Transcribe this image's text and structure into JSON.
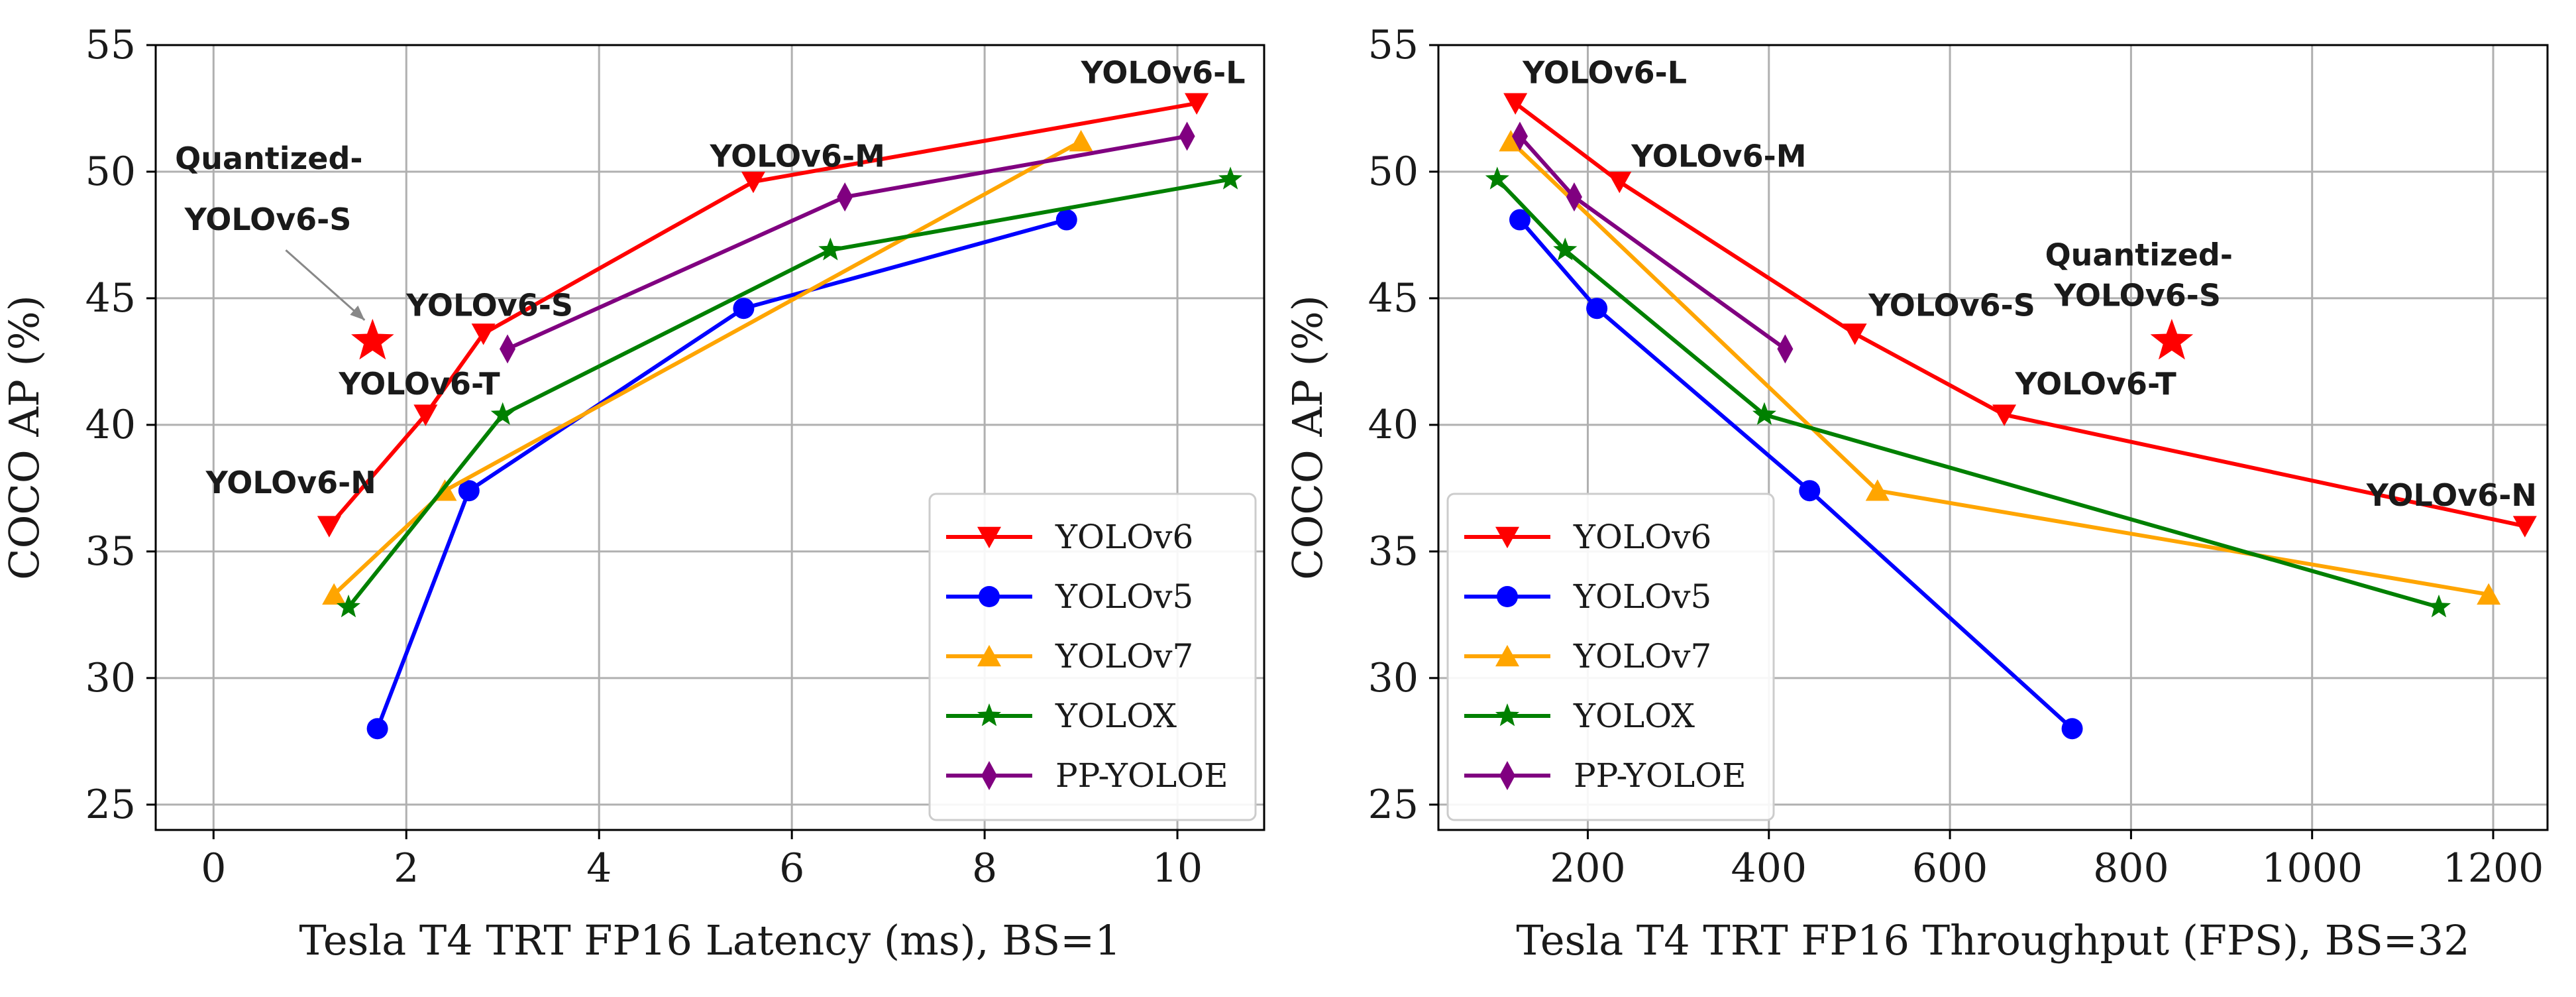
{
  "chart_data": [
    {
      "type": "line",
      "xlabel": "Tesla T4 TRT FP16 Latency (ms), BS=1",
      "ylabel": "COCO AP (%)",
      "xlim": [
        -0.6,
        10.9
      ],
      "ylim": [
        24,
        55
      ],
      "xticks": [
        0,
        2,
        4,
        6,
        8,
        10
      ],
      "yticks": [
        25,
        30,
        35,
        40,
        45,
        50,
        55
      ],
      "grid": true,
      "legend": "bottom-right",
      "series": [
        {
          "name": "YOLOv6",
          "color": "#ff0000",
          "marker": "triangle-down",
          "points": [
            [
              1.2,
              36.0
            ],
            [
              2.2,
              40.4
            ],
            [
              2.8,
              43.6
            ],
            [
              5.6,
              49.6
            ],
            [
              10.2,
              52.7
            ]
          ]
        },
        {
          "name": "YOLOv5",
          "color": "#0000ff",
          "marker": "circle",
          "points": [
            [
              1.7,
              28.0
            ],
            [
              2.65,
              37.4
            ],
            [
              5.5,
              44.6
            ],
            [
              8.85,
              48.1
            ]
          ]
        },
        {
          "name": "YOLOv7",
          "color": "#ffa500",
          "marker": "triangle-up",
          "points": [
            [
              1.25,
              33.3
            ],
            [
              2.4,
              37.4
            ],
            [
              9.0,
              51.2
            ]
          ]
        },
        {
          "name": "YOLOX",
          "color": "#008000",
          "marker": "star",
          "points": [
            [
              1.4,
              32.8
            ],
            [
              3.0,
              40.4
            ],
            [
              6.4,
              46.9
            ],
            [
              10.55,
              49.7
            ]
          ]
        },
        {
          "name": "PP-YOLOE",
          "color": "#800080",
          "marker": "diamond",
          "points": [
            [
              3.05,
              43.0
            ],
            [
              6.55,
              49.0
            ],
            [
              10.1,
              51.4
            ]
          ]
        },
        {
          "name": "Quantized-YOLOv6-S",
          "color": "#ff0000",
          "marker": "big-star",
          "legend": false,
          "points": [
            [
              1.65,
              43.3
            ]
          ]
        }
      ],
      "annotations": [
        {
          "text": "YOLOv6-N",
          "x": -0.08,
          "y": 37.3
        },
        {
          "text": "YOLOv6-T",
          "x": 1.3,
          "y": 41.2
        },
        {
          "text": "YOLOv6-S",
          "x": 2.0,
          "y": 44.3
        },
        {
          "text": "YOLOv6-M",
          "x": 5.15,
          "y": 50.2
        },
        {
          "text": "YOLOv6-L",
          "x": 9.0,
          "y": 53.5
        },
        {
          "text": "Quantized-",
          "x": -0.4,
          "y": 50.1
        },
        {
          "text": "YOLOv6-S",
          "x": -0.3,
          "y": 47.7
        }
      ]
    },
    {
      "type": "line",
      "xlabel": "Tesla T4 TRT FP16 Throughput (FPS), BS=32",
      "ylabel": "COCO AP (%)",
      "xlim": [
        35,
        1260
      ],
      "ylim": [
        24,
        55
      ],
      "xticks": [
        200,
        400,
        600,
        800,
        1000,
        1200
      ],
      "yticks": [
        25,
        30,
        35,
        40,
        45,
        50,
        55
      ],
      "grid": true,
      "legend": "bottom-left",
      "series": [
        {
          "name": "YOLOv6",
          "color": "#ff0000",
          "marker": "triangle-down",
          "points": [
            [
              120,
              52.7
            ],
            [
              235,
              49.6
            ],
            [
              495,
              43.6
            ],
            [
              660,
              40.4
            ],
            [
              1235,
              36.0
            ]
          ]
        },
        {
          "name": "YOLOv5",
          "color": "#0000ff",
          "marker": "circle",
          "points": [
            [
              125,
              48.1
            ],
            [
              210,
              44.6
            ],
            [
              445,
              37.4
            ],
            [
              735,
              28.0
            ]
          ]
        },
        {
          "name": "YOLOv7",
          "color": "#ffa500",
          "marker": "triangle-up",
          "points": [
            [
              115,
              51.2
            ],
            [
              520,
              37.4
            ],
            [
              1195,
              33.3
            ]
          ]
        },
        {
          "name": "YOLOX",
          "color": "#008000",
          "marker": "star",
          "points": [
            [
              100,
              49.7
            ],
            [
              175,
              46.9
            ],
            [
              395,
              40.4
            ],
            [
              1140,
              32.8
            ]
          ]
        },
        {
          "name": "PP-YOLOE",
          "color": "#800080",
          "marker": "diamond",
          "points": [
            [
              125,
              51.4
            ],
            [
              185,
              49.0
            ],
            [
              418,
              43.0
            ]
          ]
        },
        {
          "name": "Quantized-YOLOv6-S",
          "color": "#ff0000",
          "marker": "big-star",
          "legend": false,
          "points": [
            [
              845,
              43.3
            ]
          ]
        }
      ],
      "annotations": [
        {
          "text": "YOLOv6-L",
          "x": 128,
          "y": 53.5
        },
        {
          "text": "YOLOv6-M",
          "x": 248,
          "y": 50.2
        },
        {
          "text": "YOLOv6-S",
          "x": 510,
          "y": 44.3
        },
        {
          "text": "YOLOv6-T",
          "x": 672,
          "y": 41.2
        },
        {
          "text": "YOLOv6-N",
          "x": 1060,
          "y": 36.8
        },
        {
          "text": "Quantized-",
          "x": 705,
          "y": 46.3
        },
        {
          "text": "YOLOv6-S",
          "x": 715,
          "y": 44.7
        }
      ]
    }
  ]
}
